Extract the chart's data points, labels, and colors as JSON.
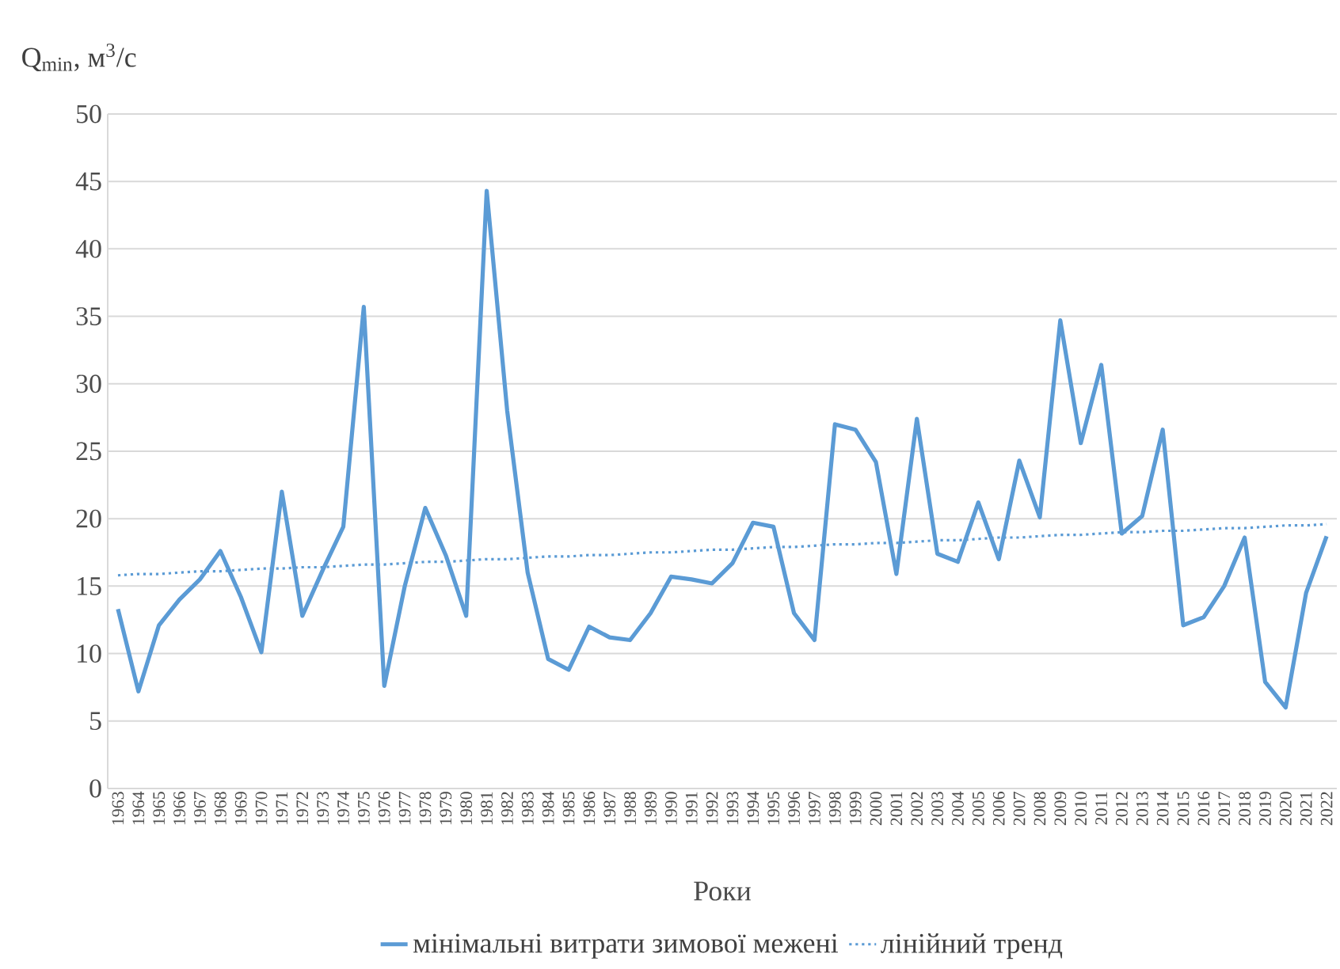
{
  "chart_data": {
    "type": "line",
    "ylabel": "Q$_{min}$, м$^{3}$/с",
    "xlabel": "Роки",
    "categories": [
      "1963",
      "1964",
      "1965",
      "1966",
      "1967",
      "1968",
      "1969",
      "1970",
      "1971",
      "1972",
      "1973",
      "1974",
      "1975",
      "1976",
      "1977",
      "1978",
      "1979",
      "1980",
      "1981",
      "1982",
      "1983",
      "1984",
      "1985",
      "1986",
      "1987",
      "1988",
      "1989",
      "1990",
      "1991",
      "1992",
      "1993",
      "1994",
      "1995",
      "1996",
      "1997",
      "1998",
      "1999",
      "2000",
      "2001",
      "2002",
      "2003",
      "2004",
      "2005",
      "2006",
      "2007",
      "2008",
      "2009",
      "2010",
      "2011",
      "2012",
      "2013",
      "2014",
      "2015",
      "2016",
      "2017",
      "2018",
      "2019",
      "2020",
      "2021",
      "2022"
    ],
    "series": [
      {
        "name": "мінімальні витрати зимової межені",
        "color": "#5b9bd5",
        "line_style": "solid",
        "values": [
          13.3,
          7.2,
          12.1,
          14.0,
          15.5,
          17.6,
          14.2,
          10.1,
          22.0,
          12.8,
          16.2,
          19.4,
          35.7,
          7.6,
          15.0,
          20.8,
          17.3,
          12.8,
          44.3,
          28.0,
          16.0,
          9.6,
          8.8,
          12.0,
          11.2,
          11.0,
          13.0,
          15.7,
          15.5,
          15.2,
          16.7,
          19.7,
          19.4,
          13.0,
          11.0,
          27.0,
          26.6,
          24.2,
          15.9,
          27.4,
          17.4,
          16.8,
          21.2,
          17.0,
          24.3,
          20.1,
          34.7,
          25.6,
          31.4,
          18.9,
          20.2,
          26.6,
          12.1,
          12.7,
          15.0,
          18.6,
          7.9,
          6.0,
          14.5,
          18.7
        ]
      },
      {
        "name": "лінійний тренд",
        "color": "#5b9bd5",
        "line_style": "dotted",
        "values": [
          15.8,
          15.9,
          15.9,
          16.0,
          16.1,
          16.1,
          16.2,
          16.3,
          16.3,
          16.4,
          16.4,
          16.5,
          16.6,
          16.6,
          16.7,
          16.8,
          16.8,
          16.9,
          17.0,
          17.0,
          17.1,
          17.2,
          17.2,
          17.3,
          17.3,
          17.4,
          17.5,
          17.5,
          17.6,
          17.7,
          17.7,
          17.8,
          17.9,
          17.9,
          18.0,
          18.1,
          18.1,
          18.2,
          18.2,
          18.3,
          18.4,
          18.4,
          18.5,
          18.6,
          18.6,
          18.7,
          18.8,
          18.8,
          18.9,
          19.0,
          19.0,
          19.1,
          19.1,
          19.2,
          19.3,
          19.3,
          19.4,
          19.5,
          19.5,
          19.6
        ]
      }
    ],
    "ylim": [
      0,
      50
    ],
    "yticks": [
      0,
      5,
      10,
      15,
      20,
      25,
      30,
      35,
      40,
      45,
      50
    ],
    "grid": "y",
    "legend": "bottom",
    "marker": "none"
  }
}
